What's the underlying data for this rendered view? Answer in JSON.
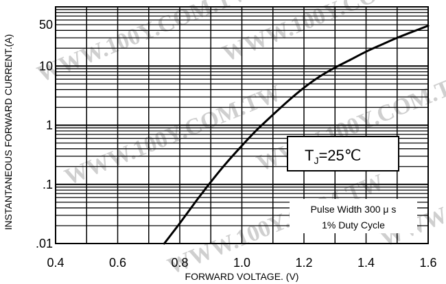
{
  "chart_data": {
    "type": "line",
    "title": "",
    "xlabel": "FORWARD VOLTAGE. (V)",
    "ylabel": "INSTANTANEOUS FORWARD CURRENT.(A)",
    "x_scale": "linear",
    "y_scale": "log",
    "xlim": [
      0.4,
      1.6
    ],
    "ylim": [
      0.01,
      100
    ],
    "x_ticks": [
      0.4,
      0.6,
      0.8,
      1.0,
      1.2,
      1.4,
      1.6
    ],
    "x_tick_labels": [
      "0.4",
      "0.6",
      "0.8",
      "1.0",
      "1.2",
      "1.4",
      "1.6"
    ],
    "y_ticks": [
      0.01,
      0.1,
      1,
      10,
      50
    ],
    "y_tick_labels": [
      ".01",
      ".1",
      "1",
      "10",
      "50"
    ],
    "grid": true,
    "series": [
      {
        "x": [
          0.75,
          0.8,
          0.85,
          0.9,
          0.95,
          1.0,
          1.05,
          1.1,
          1.15,
          1.2,
          1.25,
          1.3,
          1.35,
          1.4,
          1.45,
          1.5,
          1.55,
          1.6
        ],
        "y": [
          0.01,
          0.022,
          0.05,
          0.11,
          0.23,
          0.45,
          0.85,
          1.5,
          2.6,
          4.3,
          6.6,
          9.4,
          12.8,
          17.5,
          23,
          30,
          38,
          48
        ]
      }
    ],
    "annotations": {
      "temperature": "T",
      "temperature_sub": "J",
      "temperature_value": "=25℃",
      "pulse_line1": "Pulse Width 300 μ s",
      "pulse_line2": "1% Duty Cycle"
    },
    "watermark": "WWW.100Y.COM.TW"
  }
}
